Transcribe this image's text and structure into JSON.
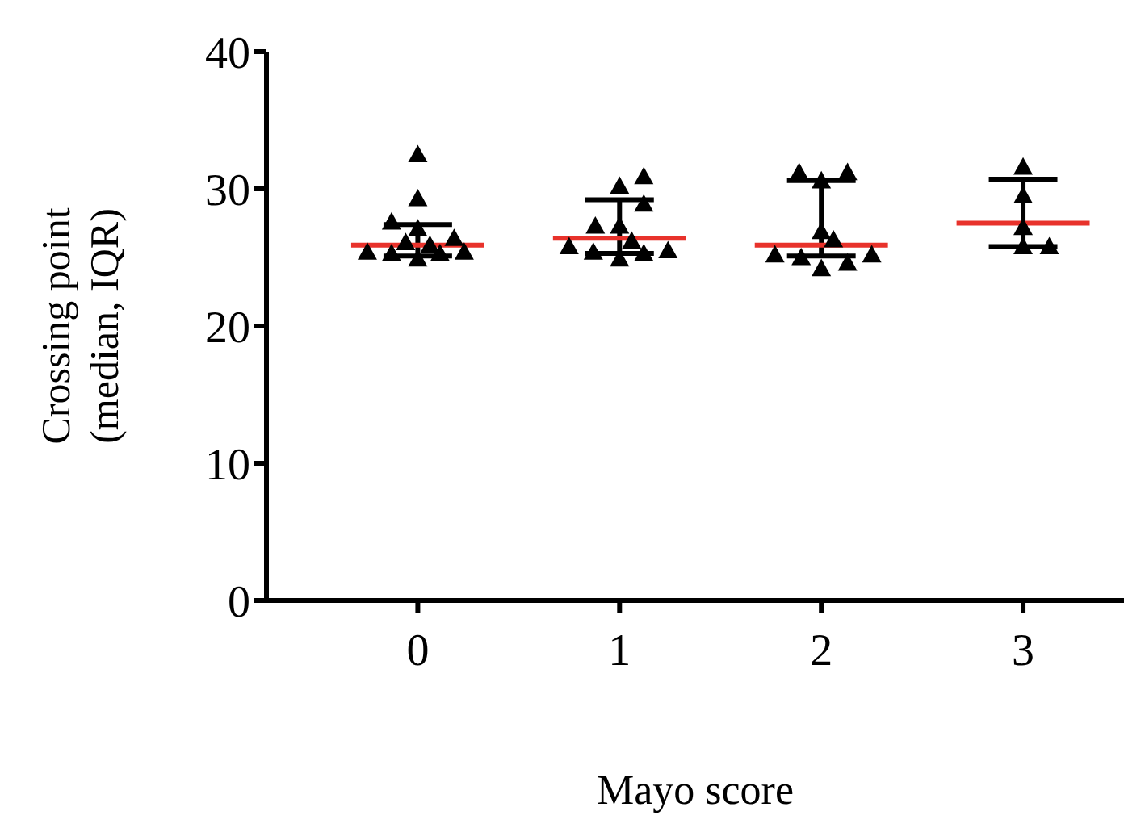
{
  "chart_data": {
    "type": "scatter",
    "xlabel": "Mayo score",
    "ylabel": "Crossing point\n(median, IQR)",
    "xlim": [
      -0.75,
      3.5
    ],
    "xticks": [
      0,
      1,
      2,
      3
    ],
    "ylim": [
      0,
      40
    ],
    "yticks": [
      0,
      10,
      20,
      30,
      40
    ],
    "grid": false,
    "legend": false,
    "series": [
      {
        "type": "line",
        "color": "#000000",
        "marker": "none",
        "x": [
          0,
          0
        ],
        "values": [
          25.1,
          27.4
        ]
      },
      {
        "type": "line",
        "color": "#000000",
        "marker": "none",
        "x": [
          -0.17,
          0.17
        ],
        "values": [
          27.4,
          27.4
        ]
      },
      {
        "type": "line",
        "color": "#000000",
        "marker": "none",
        "x": [
          -0.17,
          0.17
        ],
        "values": [
          25.1,
          25.1
        ]
      },
      {
        "type": "line",
        "color": "#000000",
        "marker": "none",
        "x": [
          1,
          1
        ],
        "values": [
          25.3,
          29.2
        ]
      },
      {
        "type": "line",
        "color": "#000000",
        "marker": "none",
        "x": [
          0.83,
          1.17
        ],
        "values": [
          29.2,
          29.2
        ]
      },
      {
        "type": "line",
        "color": "#000000",
        "marker": "none",
        "x": [
          0.83,
          1.17
        ],
        "values": [
          25.3,
          25.3
        ]
      },
      {
        "type": "line",
        "color": "#000000",
        "marker": "none",
        "x": [
          2,
          2
        ],
        "values": [
          25.1,
          30.6
        ]
      },
      {
        "type": "line",
        "color": "#000000",
        "marker": "none",
        "x": [
          1.83,
          2.17
        ],
        "values": [
          30.6,
          30.6
        ]
      },
      {
        "type": "line",
        "color": "#000000",
        "marker": "none",
        "x": [
          1.83,
          2.17
        ],
        "values": [
          25.1,
          25.1
        ]
      },
      {
        "type": "line",
        "color": "#000000",
        "marker": "none",
        "x": [
          3,
          3
        ],
        "values": [
          25.8,
          30.7
        ]
      },
      {
        "type": "line",
        "color": "#000000",
        "marker": "none",
        "x": [
          2.83,
          3.17
        ],
        "values": [
          30.7,
          30.7
        ]
      },
      {
        "type": "line",
        "color": "#000000",
        "marker": "none",
        "x": [
          2.83,
          3.17
        ],
        "values": [
          25.8,
          25.8
        ]
      },
      {
        "color": "#000000",
        "marker": "triangle",
        "x": [
          0,
          0,
          -0.13,
          0,
          -0.25,
          -0.13,
          -0.06,
          0,
          0.06,
          0.11,
          0.18,
          0.23,
          1.12,
          1,
          1.12,
          0.88,
          1,
          1.06,
          0.75,
          0.87,
          1,
          1.12,
          1.24,
          1.89,
          2.13,
          2,
          2,
          2.06,
          1.77,
          1.9,
          2,
          2.13,
          2.25,
          3,
          3,
          3,
          3,
          3.13
        ],
        "values": [
          32.5,
          29.3,
          27.6,
          27.1,
          25.4,
          25.3,
          26.1,
          24.9,
          25.9,
          25.3,
          26.4,
          25.4,
          30.9,
          30.2,
          28.9,
          27.3,
          27.3,
          26.2,
          25.8,
          25.4,
          24.9,
          25.3,
          25.5,
          31.2,
          31.2,
          30.6,
          26.9,
          26.3,
          25.2,
          25.0,
          24.2,
          24.6,
          25.2,
          31.6,
          29.5,
          27.2,
          25.8,
          25.8
        ]
      },
      {
        "type": "line",
        "color": "#e8322b",
        "marker": "none",
        "x": [
          -0.33,
          0.33
        ],
        "values": [
          25.9,
          25.9
        ]
      },
      {
        "type": "line",
        "color": "#e8322b",
        "marker": "none",
        "x": [
          0.67,
          1.33
        ],
        "values": [
          26.4,
          26.4
        ]
      },
      {
        "type": "line",
        "color": "#e8322b",
        "marker": "none",
        "x": [
          1.67,
          2.33
        ],
        "values": [
          25.9,
          25.9
        ]
      },
      {
        "type": "line",
        "color": "#e8322b",
        "marker": "none",
        "x": [
          2.67,
          3.33
        ],
        "values": [
          27.5,
          27.5
        ]
      }
    ]
  }
}
